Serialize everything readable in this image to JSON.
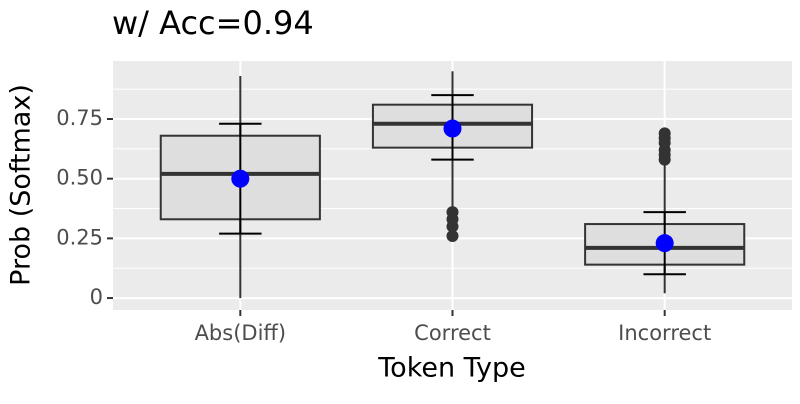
{
  "chart_data": {
    "type": "boxplot",
    "title": "w/ Acc=0.94",
    "x_label": "Token Type",
    "y_label": "Prob (Softmax)",
    "categories": [
      "Abs(Diff)",
      "Correct",
      "Incorrect"
    ],
    "boxes": [
      {
        "whisker_low": 0.0,
        "q1": 0.33,
        "median": 0.52,
        "q3": 0.68,
        "whisker_high": 0.93,
        "outliers": [],
        "mean": 0.5,
        "err_low": 0.27,
        "err_high": 0.73
      },
      {
        "whisker_low": 0.37,
        "q1": 0.63,
        "median": 0.73,
        "q3": 0.81,
        "whisker_high": 0.95,
        "outliers": [
          0.36,
          0.33,
          0.3,
          0.26
        ],
        "mean": 0.71,
        "err_low": 0.58,
        "err_high": 0.85
      },
      {
        "whisker_low": 0.02,
        "q1": 0.14,
        "median": 0.21,
        "q3": 0.31,
        "whisker_high": 0.57,
        "outliers": [
          0.58,
          0.6,
          0.62,
          0.65,
          0.67,
          0.69
        ],
        "mean": 0.23,
        "err_low": 0.1,
        "err_high": 0.36
      }
    ],
    "box_color": "#333333",
    "box_fill": "#dedede",
    "mean_color": "#0000ff",
    "outlier_color": "#333333",
    "background": "#ebebeb",
    "ylim": [
      -0.05,
      0.993
    ],
    "yticks": [
      0,
      {
        "value": 0.25,
        "label": "0.25"
      },
      {
        "value": 0.5,
        "label": "0.50"
      },
      {
        "value": 0.75,
        "label": "0.75"
      }
    ],
    "minor_yticks": [
      0.125,
      0.375,
      0.625,
      0.875
    ],
    "grid": true
  }
}
